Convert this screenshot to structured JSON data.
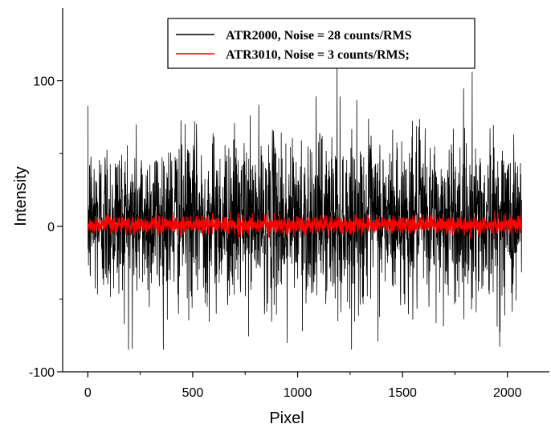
{
  "chart_data": {
    "type": "line",
    "title": "",
    "xlabel": "Pixel",
    "ylabel": "Intensity",
    "xlim": [
      -120,
      2200
    ],
    "ylim": [
      -100,
      150
    ],
    "x_ticks": [
      0,
      500,
      1000,
      1500,
      2000
    ],
    "y_ticks": [
      -100,
      0,
      100
    ],
    "grid": false,
    "legend_position": "top-right",
    "series": [
      {
        "name": "ATR2000, Noise = 28 counts/RMS",
        "color": "#000000",
        "x_range": [
          0,
          2068
        ],
        "rms": 28,
        "mean": 5,
        "notable_points": [
          {
            "x": 1188,
            "y": 112
          },
          {
            "x": 1192,
            "y": -65
          },
          {
            "x": 1832,
            "y": 106
          },
          {
            "x": 212,
            "y": -84
          },
          {
            "x": 950,
            "y": -80
          }
        ]
      },
      {
        "name": "ATR3010, Noise = 3 counts/RMS;",
        "color": "#ff0000",
        "x_range": [
          0,
          2068
        ],
        "rms": 3,
        "mean": 1
      }
    ]
  }
}
